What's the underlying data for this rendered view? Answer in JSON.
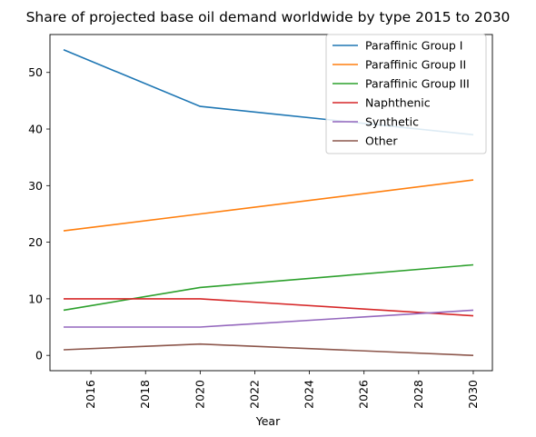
{
  "chart_data": {
    "type": "line",
    "title": "Share of projected base oil demand worldwide by type 2015 to 2030",
    "xlabel": "Year",
    "ylabel": "",
    "x": [
      2015,
      2020,
      2030
    ],
    "xlim": [
      2014.5,
      2030.7
    ],
    "ylim": [
      -2.7,
      56.7
    ],
    "xticks": [
      2016,
      2018,
      2020,
      2022,
      2024,
      2026,
      2028,
      2030
    ],
    "yticks": [
      0,
      10,
      20,
      30,
      40,
      50
    ],
    "grid": false,
    "legend_position": "top-right",
    "series": [
      {
        "name": "Paraffinic Group I",
        "values": [
          54,
          44,
          39
        ],
        "color": "#1f77b4"
      },
      {
        "name": "Paraffinic Group II",
        "values": [
          22,
          25,
          31
        ],
        "color": "#ff7f0e"
      },
      {
        "name": "Paraffinic Group III",
        "values": [
          8,
          12,
          16
        ],
        "color": "#2ca02c"
      },
      {
        "name": "Naphthenic",
        "values": [
          10,
          10,
          7
        ],
        "color": "#d62728"
      },
      {
        "name": "Synthetic",
        "values": [
          5,
          5,
          8
        ],
        "color": "#9467bd"
      },
      {
        "name": "Other",
        "values": [
          1,
          2,
          0
        ],
        "color": "#8c564b"
      }
    ]
  }
}
